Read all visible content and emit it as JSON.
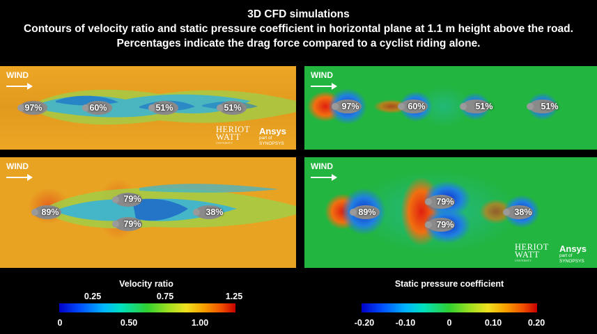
{
  "title": {
    "line1": "3D CFD simulations",
    "line2": "Contours of velocity ratio and static pressure coefficient in horizontal plane at 1.1 m height above the road.",
    "line3": "Percentages indicate the drag force compared to a cyclist riding alone."
  },
  "panels": {
    "velocity_top": {
      "wind": "WIND",
      "riders": [
        "97%",
        "60%",
        "51%",
        "51%"
      ]
    },
    "pressure_top": {
      "wind": "WIND",
      "riders": [
        "97%",
        "60%",
        "51%",
        "51%"
      ]
    },
    "velocity_bottom": {
      "wind": "WIND",
      "riders": [
        "89%",
        "79%",
        "79%",
        "38%"
      ]
    },
    "pressure_bottom": {
      "wind": "WIND",
      "riders": [
        "89%",
        "79%",
        "79%",
        "38%"
      ]
    }
  },
  "logos": {
    "heriot_watt_line1": "HERIOT",
    "heriot_watt_line2": "WATT",
    "heriot_watt_sub": "UNIVERSITY",
    "ansys": "Ansys",
    "ansys_sub": "part of SYNOPSYS"
  },
  "velocity_colorbar": {
    "title": "Velocity ratio",
    "top_ticks": [
      "0.25",
      "0.75",
      "1.25"
    ],
    "bottom_ticks": [
      "0",
      "0.50",
      "1.00"
    ]
  },
  "pressure_colorbar": {
    "title": "Static pressure coefficient",
    "ticks": [
      "-0.20",
      "-0.10",
      "0",
      "0.10",
      "0.20"
    ]
  },
  "colors": {
    "velocity_background": "#e8a020",
    "pressure_background": "#1fb53f",
    "rider_gray": "#8a8a8a"
  }
}
